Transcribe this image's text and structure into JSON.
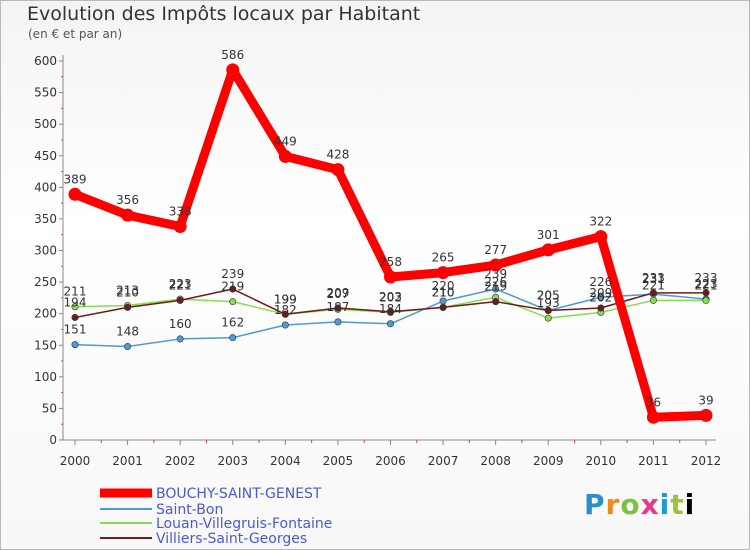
{
  "chart_data": {
    "type": "line",
    "title": "Evolution des Impôts locaux par Habitant",
    "subtitle": "(en € et par an)",
    "xlabel": "",
    "ylabel": "",
    "x": [
      "2000",
      "2001",
      "2002",
      "2003",
      "2004",
      "2005",
      "2006",
      "2007",
      "2008",
      "2009",
      "2010",
      "2011",
      "2012"
    ],
    "ylim": [
      0,
      600
    ],
    "yticks": [
      0,
      50,
      100,
      150,
      200,
      250,
      300,
      350,
      400,
      450,
      500,
      550,
      600
    ],
    "grid": false,
    "legend_position": "bottom-left",
    "series": [
      {
        "name": "BOUCHY-SAINT-GENEST",
        "color": "#ff0000",
        "values": [
          389,
          356,
          338,
          586,
          449,
          428,
          258,
          265,
          277,
          301,
          322,
          36,
          39
        ],
        "labels": [
          "389",
          "356",
          "338",
          "586",
          "449",
          "428",
          "258",
          "265",
          "277",
          "301",
          "322",
          "36",
          "39"
        ]
      },
      {
        "name": "Saint-Bon",
        "color": "#4e9ad4",
        "values": [
          151,
          148,
          160,
          162,
          182,
          187,
          184,
          220,
          239,
          205,
          226,
          231,
          223
        ],
        "labels": [
          "151",
          "148",
          "160",
          "162",
          "182",
          "187",
          "184",
          "220",
          "239",
          "205",
          "226",
          "231",
          "223"
        ]
      },
      {
        "name": "Louan-Villegruis-Fontaine",
        "color": "#88dc4e",
        "values": [
          211,
          213,
          223,
          219,
          199,
          207,
          202,
          210,
          226,
          193,
          202,
          221,
          221
        ],
        "labels": [
          "211",
          "213",
          "223",
          "219",
          "199",
          "207",
          "202",
          "210",
          "226",
          "193",
          "202",
          "221",
          "221"
        ]
      },
      {
        "name": "Villiers-Saint-Georges",
        "color": "#6b1c1c",
        "values": [
          194,
          210,
          221,
          239,
          199,
          209,
          203,
          210,
          219,
          205,
          209,
          233,
          233
        ],
        "labels": [
          "194",
          "210",
          "221",
          "239",
          "199",
          "209",
          "203",
          "210",
          "219",
          "205",
          "209",
          "233",
          "233"
        ]
      }
    ]
  },
  "logo": {
    "text": "Proxiti"
  }
}
